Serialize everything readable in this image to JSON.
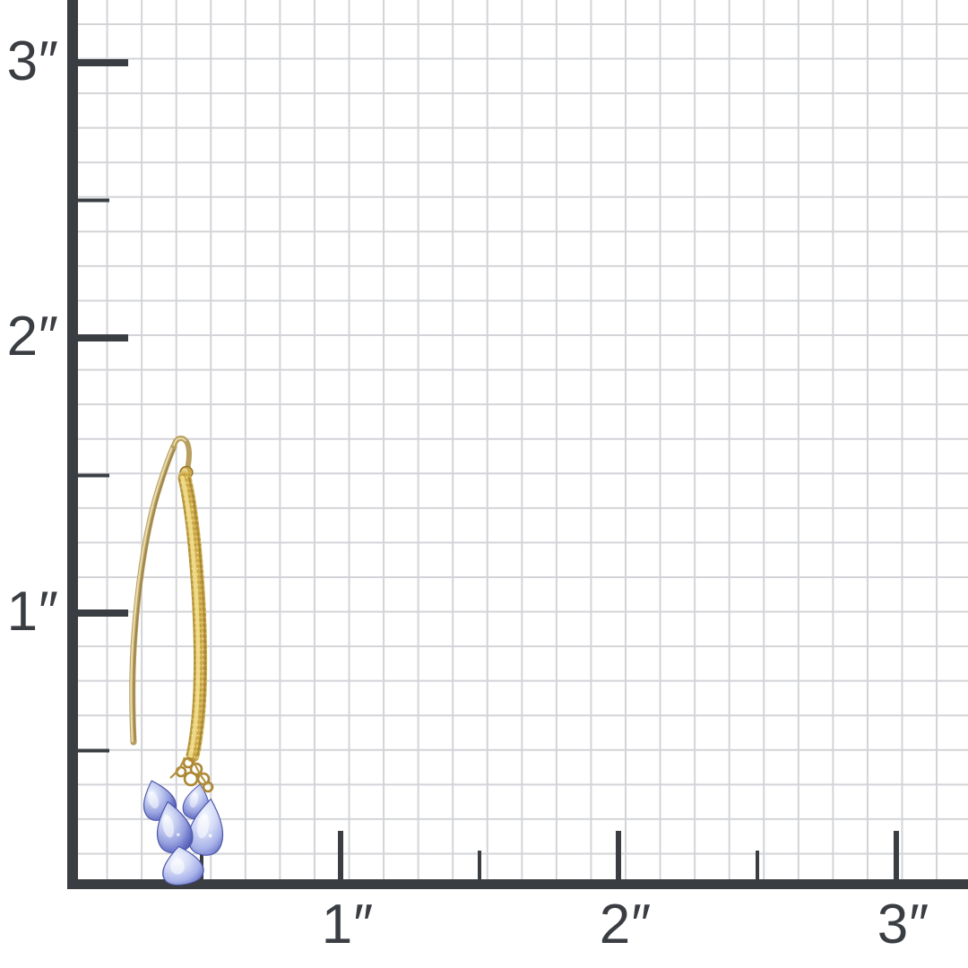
{
  "scene": {
    "subject": "gold curved threader earring with cluster of five blue briolette gemstone drops, photographed on an inch measurement grid",
    "background": "white with light gray square grid"
  },
  "ruler": {
    "unit": "inches",
    "grid_squares_per_inch": 8,
    "y_axis": {
      "major_ticks": [
        {
          "inches": 3,
          "label": "3″"
        },
        {
          "inches": 2,
          "label": "2″"
        },
        {
          "inches": 1,
          "label": "1″"
        }
      ],
      "minor_ticks_inches": [
        2.5,
        1.5,
        0.5
      ]
    },
    "x_axis": {
      "major_ticks": [
        {
          "inches": 1,
          "label": "1″"
        },
        {
          "inches": 2,
          "label": "2″"
        },
        {
          "inches": 3,
          "label": "3″"
        }
      ],
      "minor_ticks_inches": [
        0.5,
        1.5,
        2.5
      ]
    }
  },
  "colors": {
    "background": "#ffffff",
    "grid_line": "#d3d4d8",
    "axis": "#3a3d42",
    "label_text": "#3a3d42",
    "gold_wire": "#b89f60",
    "gold_bar": "#d2af4e",
    "gold_highlight": "#f2e091",
    "gemstone_blue": "#8f99d9",
    "gemstone_blue_dark": "#4f59ae",
    "gemstone_blue_light": "#d3daf6"
  }
}
